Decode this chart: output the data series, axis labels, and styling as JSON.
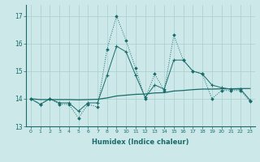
{
  "xlabel": "Humidex (Indice chaleur)",
  "xlim": [
    -0.5,
    23.5
  ],
  "ylim": [
    13.0,
    17.4
  ],
  "yticks": [
    13,
    14,
    15,
    16,
    17
  ],
  "xticks": [
    0,
    1,
    2,
    3,
    4,
    5,
    6,
    7,
    8,
    9,
    10,
    11,
    12,
    13,
    14,
    15,
    16,
    17,
    18,
    19,
    20,
    21,
    22,
    23
  ],
  "bg_color": "#cce8e8",
  "grid_color": "#aacece",
  "line_color": "#1a6b6b",
  "dotted_line": [
    14.0,
    13.8,
    14.0,
    13.8,
    13.8,
    13.3,
    13.8,
    13.7,
    15.8,
    17.0,
    16.1,
    15.1,
    14.0,
    14.9,
    14.3,
    16.3,
    15.4,
    15.0,
    14.9,
    14.0,
    14.3,
    14.3,
    14.3,
    13.9
  ],
  "solid_line": [
    14.0,
    13.8,
    14.0,
    13.85,
    13.85,
    13.55,
    13.85,
    13.85,
    14.85,
    15.9,
    15.7,
    14.85,
    14.05,
    14.5,
    14.35,
    15.4,
    15.4,
    15.0,
    14.9,
    14.5,
    14.4,
    14.35,
    14.35,
    13.95
  ],
  "flat_line": [
    14.0,
    13.97,
    13.97,
    13.97,
    13.97,
    13.96,
    13.97,
    13.98,
    14.03,
    14.1,
    14.13,
    14.16,
    14.17,
    14.21,
    14.22,
    14.28,
    14.3,
    14.33,
    14.35,
    14.35,
    14.36,
    14.36,
    14.37,
    14.37
  ]
}
